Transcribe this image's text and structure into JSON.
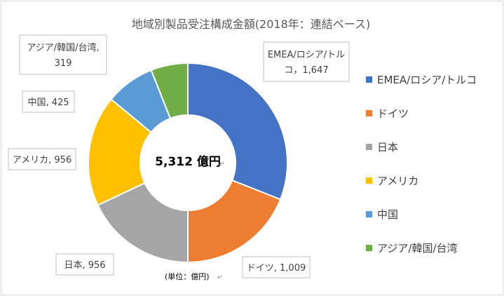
{
  "chart_data": {
    "type": "pie",
    "title": "地域別製品受注構成金額(2018年：連結ベース)",
    "center_label": "5,312 億円",
    "unit_note": "(単位：億円)",
    "categories": [
      "EMEA/ロシア/トルコ",
      "ドイツ",
      "日本",
      "アメリカ",
      "中国",
      "アジア/韓国/台湾"
    ],
    "values": [
      1647,
      1009,
      956,
      956,
      425,
      319
    ],
    "data_labels": [
      [
        "EMEA/ロシア/トル",
        "コ，1,647"
      ],
      [
        "ドイツ, 1,009"
      ],
      [
        "日本, 956"
      ],
      [
        "アメリカ, 956"
      ],
      [
        "中国, 425"
      ],
      [
        "アジア/韓国/台湾,",
        "319"
      ]
    ],
    "colors": [
      "#4472C4",
      "#ED7D31",
      "#A5A5A5",
      "#FFC000",
      "#5B9BD5",
      "#70AD47"
    ],
    "legend_position": "right"
  }
}
